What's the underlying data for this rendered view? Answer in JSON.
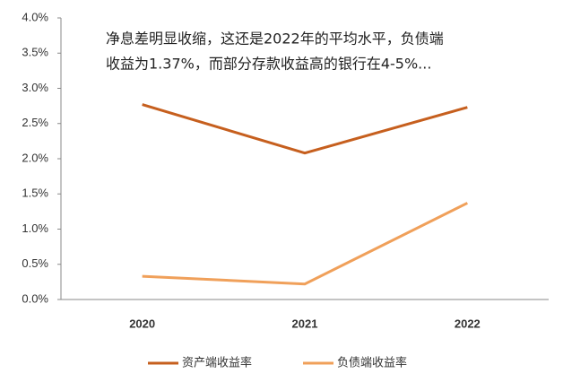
{
  "chart_data": {
    "type": "line",
    "annotation": [
      "净息差明显收缩，这还是2022年的平均水平，负债端",
      "收益为1.37%，而部分存款收益高的银行在4-5%..."
    ],
    "categories": [
      "2020",
      "2021",
      "2022"
    ],
    "series": [
      {
        "name": "资产端收益率",
        "color": "#c65f1e",
        "values": [
          2.77,
          2.08,
          2.73
        ]
      },
      {
        "name": "负债端收益率",
        "color": "#f0a05a",
        "values": [
          0.33,
          0.22,
          1.37
        ]
      }
    ],
    "ylim": [
      0,
      4
    ],
    "yticks": [
      {
        "value": 0,
        "label": "0.0%"
      },
      {
        "value": 0.5,
        "label": "0.5%"
      },
      {
        "value": 1,
        "label": "1.0%"
      },
      {
        "value": 1.5,
        "label": "1.5%"
      },
      {
        "value": 2,
        "label": "2.0%"
      },
      {
        "value": 2.5,
        "label": "2.5%"
      },
      {
        "value": 3,
        "label": "3.0%"
      },
      {
        "value": 3.5,
        "label": "3.5%"
      },
      {
        "value": 4,
        "label": "4.0%"
      }
    ],
    "grid": false,
    "legend": "bottom"
  }
}
